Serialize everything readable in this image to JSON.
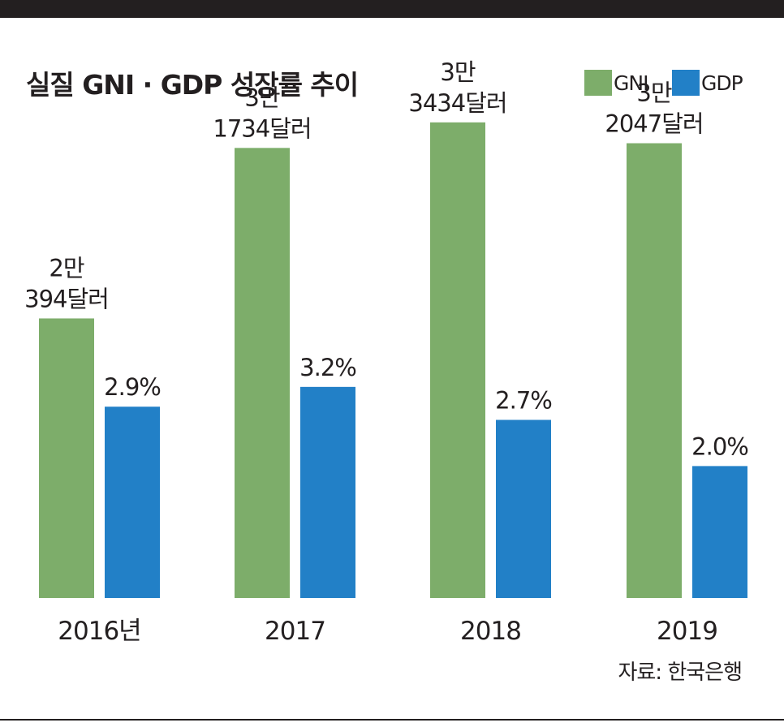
{
  "chart_data": {
    "type": "bar",
    "title": "실질 GNI · GDP 성장률 추이",
    "categories": [
      "2016년",
      "2017",
      "2018",
      "2019"
    ],
    "series": [
      {
        "name": "GNI",
        "values": [
          20394,
          31734,
          33434,
          32047
        ],
        "labels": [
          [
            "2만",
            "394달러"
          ],
          [
            "3만",
            "1734달러"
          ],
          [
            "3만",
            "3434달러"
          ],
          [
            "3만",
            "2047달러"
          ]
        ],
        "color": "#7dad6a"
      },
      {
        "name": "GDP",
        "values": [
          2.9,
          3.2,
          2.7,
          2.0
        ],
        "labels": [
          "2.9%",
          "3.2%",
          "2.7%",
          "2.0%"
        ],
        "color": "#2280c7"
      }
    ],
    "legend_position": "top-right",
    "grid": false,
    "source": "자료: 한국은행"
  }
}
